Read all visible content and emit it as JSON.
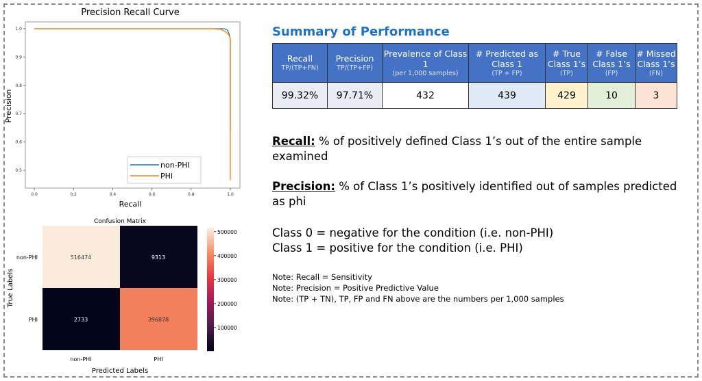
{
  "chart_data": [
    {
      "type": "line",
      "title": "Precision Recall Curve",
      "xlabel": "Recall",
      "ylabel": "Precision",
      "xlim": [
        -0.05,
        1.05
      ],
      "ylim": [
        0.45,
        1.025
      ],
      "xticks": [
        "0.0",
        "0.2",
        "0.4",
        "0.6",
        "0.8",
        "1.0"
      ],
      "yticks": [
        "0.5",
        "0.6",
        "0.7",
        "0.8",
        "0.9",
        "1.0"
      ],
      "grid": false,
      "legend": "lower-right",
      "series": [
        {
          "name": "non-PHI",
          "color": "#1f77b4",
          "x": [
            0.0,
            0.9,
            0.97,
            0.985,
            0.995,
            1.0,
            1.0
          ],
          "y": [
            1.0,
            1.0,
            1.0,
            0.995,
            0.98,
            0.96,
            0.64
          ]
        },
        {
          "name": "PHI",
          "color": "#ff7f0e",
          "x": [
            0.0,
            0.9,
            0.95,
            0.975,
            0.99,
            0.998,
            1.0,
            1.0
          ],
          "y": [
            1.0,
            1.0,
            0.998,
            0.99,
            0.98,
            0.97,
            0.96,
            0.465
          ]
        }
      ]
    },
    {
      "type": "heatmap",
      "title": "Confusion Matrix",
      "xlabel": "Predicted Labels",
      "ylabel": "True Labels",
      "xticks": [
        "non-PHI",
        "PHI"
      ],
      "yticks": [
        "non-PHI",
        "PHI"
      ],
      "values": [
        [
          516474,
          9313
        ],
        [
          2733,
          396878
        ]
      ],
      "value_labels": [
        [
          "516474",
          "9313"
        ],
        [
          "2733",
          "396878"
        ]
      ],
      "colorbar_ticks": [
        "100000",
        "200000",
        "300000",
        "400000",
        "500000"
      ],
      "colorbar_range": [
        2733,
        516474
      ],
      "colormap": "rocket"
    }
  ],
  "summary": {
    "title": "Summary of Performance",
    "headers": [
      {
        "label": "Recall",
        "sub": "TP/(TP+FN)"
      },
      {
        "label": "Precision",
        "sub": "TP/(TP+FP)"
      },
      {
        "label": "Prevalence of Class 1",
        "sub": "(per 1,000 samples)"
      },
      {
        "label": "# Predicted as Class 1",
        "sub": "(TP + FP)"
      },
      {
        "label": "# True Class 1’s",
        "sub": "(TP)"
      },
      {
        "label": "# False Class 1’s",
        "sub": "(FP)"
      },
      {
        "label": "# Missed Class 1’s",
        "sub": "(FN)"
      }
    ],
    "values": [
      "99.32%",
      "97.71%",
      "432",
      "439",
      "429",
      "10",
      "3"
    ],
    "cell_colors": [
      "#e9ebf5",
      "#e9ebf5",
      "#ffffff",
      "#deeaf6",
      "#fff2cc",
      "#e2efd9",
      "#fbe4d5"
    ],
    "header_color": "#4472c4"
  },
  "definitions": {
    "recall_term": "Recall:",
    "recall_text": " % of positively defined Class 1’s out of the entire sample examined",
    "precision_term": "Precision:",
    "precision_text": " % of Class 1’s positively identified out of samples predicted as phi",
    "class0": "Class 0 = negative for the condition (i.e. non-PHI)",
    "class1": "Class 1 = positive for the condition (i.e. PHI)"
  },
  "notes": [
    "Note: Recall = Sensitivity",
    "Note: Precision = Positive Predictive Value",
    "Note: (TP + TN), TP, FP and FN above are the numbers per 1,000 samples"
  ]
}
